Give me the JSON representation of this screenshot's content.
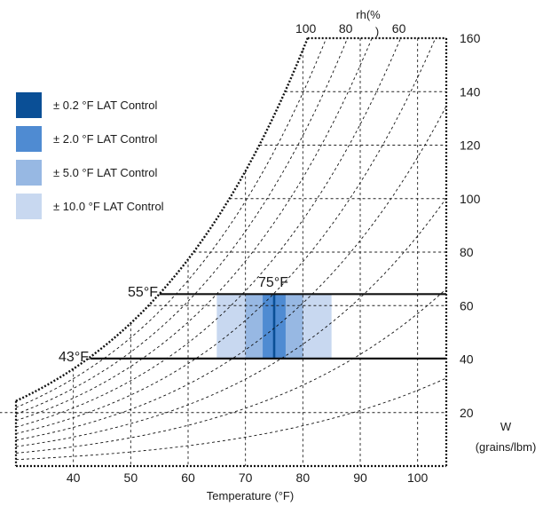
{
  "chart_data": {
    "type": "area",
    "xlabel": "Temperature (°F)",
    "ylabel": "W",
    "ylabel_unit": "(grains/lbm)",
    "xlim": [
      30,
      105
    ],
    "ylim": [
      0,
      160
    ],
    "x_ticks": [
      "40",
      "50",
      "60",
      "70",
      "80",
      "90",
      "100"
    ],
    "y_ticks": [
      "20",
      "40",
      "60",
      "80",
      "100",
      "120",
      "140",
      "160"
    ],
    "rh_label": "rh(%",
    "rh_label_close": ")",
    "rh_ticks": [
      "100",
      "80",
      "60"
    ],
    "rh_curves": [
      100,
      90,
      80,
      70,
      60,
      50,
      40,
      30,
      20,
      10
    ],
    "grid": true,
    "legend_position": "top-left",
    "limit_lines": [
      {
        "label": "55°F",
        "w": 64.3,
        "from_temp": 55
      },
      {
        "label": "43°F",
        "w": 40.2,
        "from_temp": 43
      }
    ],
    "setpoint": {
      "label": "75°F",
      "temp": 75
    },
    "control_bands": [
      {
        "name": "± 10.0 °F LAT Control",
        "temp_min": 65,
        "temp_max": 85,
        "w_min": 40.2,
        "w_max": 64.3,
        "color": "#c8d8f0"
      },
      {
        "name": "± 5.0 °F LAT Control",
        "temp_min": 70,
        "temp_max": 80,
        "w_min": 40.2,
        "w_max": 64.3,
        "color": "#97b8e3"
      },
      {
        "name": "± 2.0 °F LAT Control",
        "temp_min": 73,
        "temp_max": 77,
        "w_min": 40.2,
        "w_max": 64.3,
        "color": "#4f8bd2"
      },
      {
        "name": "± 0.2 °F LAT Control",
        "temp_min": 74.8,
        "temp_max": 75.2,
        "w_min": 40.2,
        "w_max": 64.3,
        "color": "#0a4f96"
      }
    ]
  },
  "legend": {
    "items": [
      {
        "label": "± 0.2 °F LAT Control",
        "color": "#0a4f96"
      },
      {
        "label": "± 2.0 °F LAT Control",
        "color": "#4f8bd2"
      },
      {
        "label": "± 5.0 °F LAT Control",
        "color": "#97b8e3"
      },
      {
        "label": "± 10.0 °F LAT Control",
        "color": "#c8d8f0"
      }
    ]
  }
}
